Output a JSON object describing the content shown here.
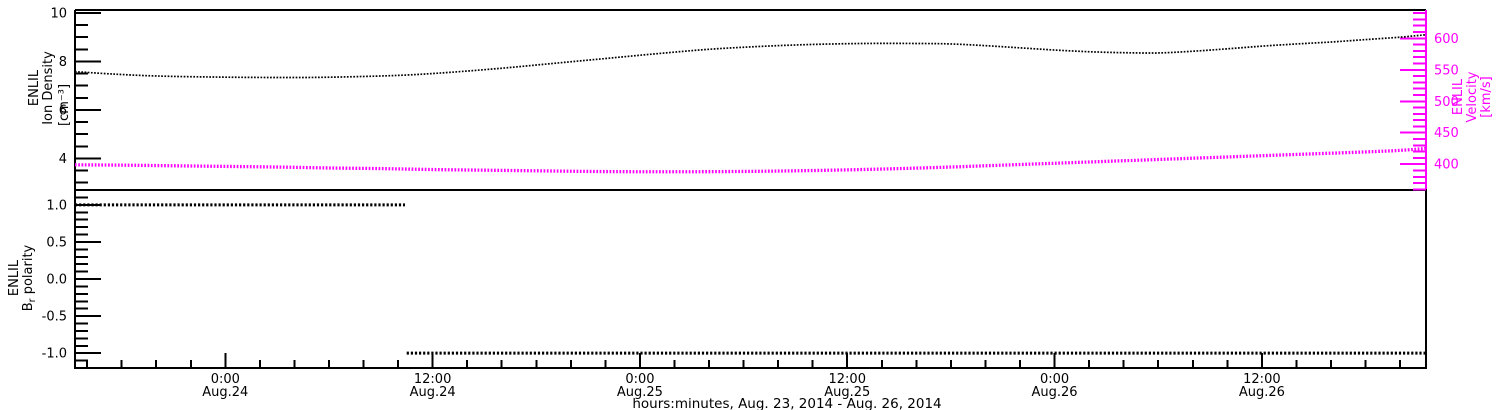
{
  "colors": {
    "density": "#000000",
    "velocity": "#ff00ff",
    "polarity": "#000000",
    "background": "#ffffff",
    "axis": "#000000"
  },
  "chart_data": {
    "type": "line",
    "title": "",
    "x_axis": {
      "label": "hours:minutes, Aug. 23, 2014 - Aug. 26, 2014",
      "hour_origin": "Aug. 23, 2014 00:00",
      "min_hour": 15.3,
      "max_hour": 93.5,
      "minor_tick_step_hours": 2,
      "grid": false,
      "major_ticks": [
        {
          "hour": 24,
          "time": "0:00",
          "date": "Aug.24"
        },
        {
          "hour": 36,
          "time": "12:00",
          "date": "Aug.24"
        },
        {
          "hour": 48,
          "time": "0:00",
          "date": "Aug.25"
        },
        {
          "hour": 60,
          "time": "12:00",
          "date": "Aug.25"
        },
        {
          "hour": 72,
          "time": "0:00",
          "date": "Aug.26"
        },
        {
          "hour": 84,
          "time": "12:00",
          "date": "Aug.26"
        }
      ]
    },
    "panels": [
      {
        "id": "density-velocity",
        "left_axis": {
          "name": "ion-density",
          "label_lines": [
            "ENLIL",
            "Ion Density"
          ],
          "units": "[cm⁻³]",
          "color": "#000000",
          "min": 2.7,
          "max": 10.12,
          "major_ticks": [
            4,
            6,
            8,
            10
          ],
          "minor_step": 0.5
        },
        "right_axis": {
          "name": "velocity",
          "label_lines": [
            "ENLIL",
            "Velocity"
          ],
          "units": "[km/s]",
          "color": "#ff00ff",
          "min": 359,
          "max": 645,
          "major_ticks": [
            400,
            450,
            500,
            550,
            600
          ],
          "minor_step": 10
        },
        "series": [
          {
            "name": "ion-density",
            "axis": "left",
            "color": "#000000",
            "style": "dotted-thin",
            "points": [
              [
                15.3,
                7.58
              ],
              [
                17.5,
                7.48
              ],
              [
                20,
                7.4
              ],
              [
                23,
                7.36
              ],
              [
                26,
                7.34
              ],
              [
                29,
                7.34
              ],
              [
                32,
                7.38
              ],
              [
                34.5,
                7.44
              ],
              [
                37,
                7.55
              ],
              [
                40,
                7.72
              ],
              [
                43,
                7.92
              ],
              [
                46,
                8.12
              ],
              [
                49,
                8.32
              ],
              [
                52,
                8.5
              ],
              [
                55,
                8.62
              ],
              [
                58,
                8.7
              ],
              [
                61,
                8.74
              ],
              [
                64,
                8.74
              ],
              [
                66,
                8.72
              ],
              [
                68,
                8.65
              ],
              [
                70,
                8.56
              ],
              [
                72,
                8.47
              ],
              [
                74,
                8.4
              ],
              [
                76,
                8.36
              ],
              [
                78,
                8.35
              ],
              [
                80,
                8.42
              ],
              [
                82,
                8.52
              ],
              [
                84,
                8.63
              ],
              [
                86,
                8.72
              ],
              [
                88,
                8.8
              ],
              [
                90,
                8.9
              ],
              [
                92,
                9.0
              ],
              [
                93.5,
                9.1
              ]
            ]
          },
          {
            "name": "velocity",
            "axis": "right",
            "color": "#ff00ff",
            "style": "dotted-thick",
            "points": [
              [
                15.3,
                399
              ],
              [
                18,
                398.5
              ],
              [
                21,
                397.5
              ],
              [
                24,
                396.5
              ],
              [
                27,
                395.5
              ],
              [
                30,
                394
              ],
              [
                33,
                393
              ],
              [
                36,
                391.5
              ],
              [
                39,
                390.5
              ],
              [
                42,
                389.5
              ],
              [
                45,
                388.5
              ],
              [
                48,
                388
              ],
              [
                51,
                388
              ],
              [
                54,
                388.5
              ],
              [
                57,
                389.5
              ],
              [
                60,
                391
              ],
              [
                63,
                393
              ],
              [
                66,
                395.5
              ],
              [
                69,
                398.5
              ],
              [
                72,
                401.5
              ],
              [
                75,
                404.5
              ],
              [
                78,
                407.5
              ],
              [
                81,
                410.5
              ],
              [
                84,
                413.5
              ],
              [
                87,
                416.5
              ],
              [
                90,
                419.5
              ],
              [
                92,
                422
              ],
              [
                93.5,
                425
              ]
            ]
          }
        ]
      },
      {
        "id": "br-polarity",
        "left_axis": {
          "name": "br-polarity",
          "label_lines": [
            "ENLIL"
          ],
          "label_sub": {
            "pre": "B",
            "sub": "r",
            "post": " polarity"
          },
          "color": "#000000",
          "min": -1.2,
          "max": 1.2,
          "major_ticks": [
            1.0,
            0.5,
            0.0,
            -0.5,
            -1.0
          ],
          "minor_step": 0.1
        },
        "series": [
          {
            "name": "br-polarity",
            "axis": "left",
            "color": "#000000",
            "style": "dotted-thick",
            "segments": [
              {
                "from_hour": 15.3,
                "to_hour": 34.4,
                "value": 1.0
              },
              {
                "from_hour": 34.5,
                "to_hour": 93.5,
                "value": -1.0
              }
            ]
          }
        ]
      }
    ]
  }
}
